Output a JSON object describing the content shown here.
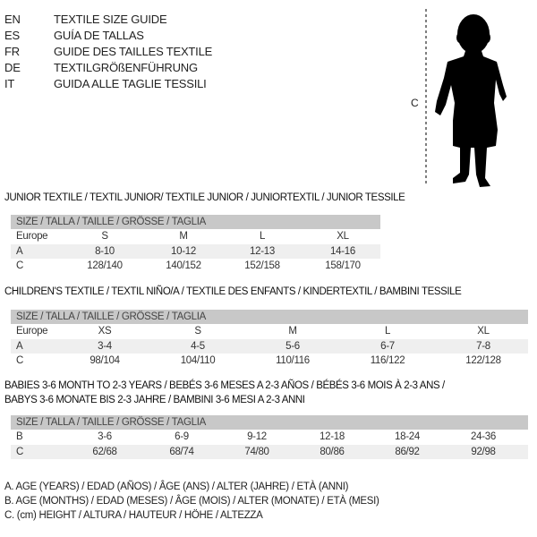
{
  "languages": [
    {
      "code": "EN",
      "text": "TEXTILE SIZE GUIDE"
    },
    {
      "code": "ES",
      "text": "GUÍA DE TALLAS"
    },
    {
      "code": "FR",
      "text": "GUIDE DES TAILLES TEXTILE"
    },
    {
      "code": "DE",
      "text": "TEXTILGRÖßENFÜHRUNG"
    },
    {
      "code": "IT",
      "text": "GUIDA ALLE TAGLIE TESSILI"
    }
  ],
  "figure": {
    "measure_label": "C"
  },
  "tables": [
    {
      "title": [
        "JUNIOR TEXTILE / TEXTIL JUNIOR/ TEXTILE JUNIOR / JUNIORTEXTIL / JUNIOR TESSILE"
      ],
      "header": "SIZE / TALLA / TAILLE / GRÖSSE / TAGLIA",
      "rows": [
        {
          "label": "Europe",
          "values": [
            "S",
            "M",
            "L",
            "XL"
          ]
        },
        {
          "label": "A",
          "values": [
            "8-10",
            "10-12",
            "12-13",
            "14-16"
          ]
        },
        {
          "label": "C",
          "values": [
            "128/140",
            "140/152",
            "152/158",
            "158/170"
          ]
        }
      ]
    },
    {
      "title": [
        "CHILDREN'S TEXTILE / TEXTIL NIÑO/A / TEXTILE DES ENFANTS / KINDERTEXTIL / BAMBINI TESSILE"
      ],
      "header": "SIZE / TALLA / TAILLE / GRÖSSE / TAGLIA",
      "rows": [
        {
          "label": "Europe",
          "values": [
            "XS",
            "S",
            "M",
            "L",
            "XL"
          ]
        },
        {
          "label": "A",
          "values": [
            "3-4",
            "4-5",
            "5-6",
            "6-7",
            "7-8"
          ]
        },
        {
          "label": "C",
          "values": [
            "98/104",
            "104/110",
            "110/116",
            "116/122",
            "122/128"
          ]
        }
      ]
    },
    {
      "title": [
        "BABIES 3-6 MONTH TO 2-3 YEARS / BEBÉS 3-6 MESES A 2-3 AÑOS / BÉBÉS 3-6 MOIS À 2-3 ANS /",
        "BABYS 3-6 MONATE BIS 2-3 JAHRE / BAMBINI 3-6 MESI A 2-3 ANNI"
      ],
      "header": "SIZE / TALLA / TAILLE / GRÖSSE / TAGLIA",
      "rows": [
        {
          "label": "B",
          "values": [
            "3-6",
            "6-9",
            "9-12",
            "12-18",
            "18-24",
            "24-36"
          ]
        },
        {
          "label": "C",
          "values": [
            "62/68",
            "68/74",
            "74/80",
            "80/86",
            "86/92",
            "92/98"
          ]
        }
      ]
    }
  ],
  "legend": [
    "A. AGE (YEARS) / EDAD (AÑOS) / ÂGE (ANS) / ALTER (JAHRE) / ETÀ (ANNI)",
    "B. AGE (MONTHS) / EDAD (MESES) / ÂGE (MOIS) / ALTER (MONATE) / ETÀ (MESI)",
    "C. (cm) HEIGHT / ALTURA / HAUTEUR / HÖHE / ALTEZZA"
  ]
}
